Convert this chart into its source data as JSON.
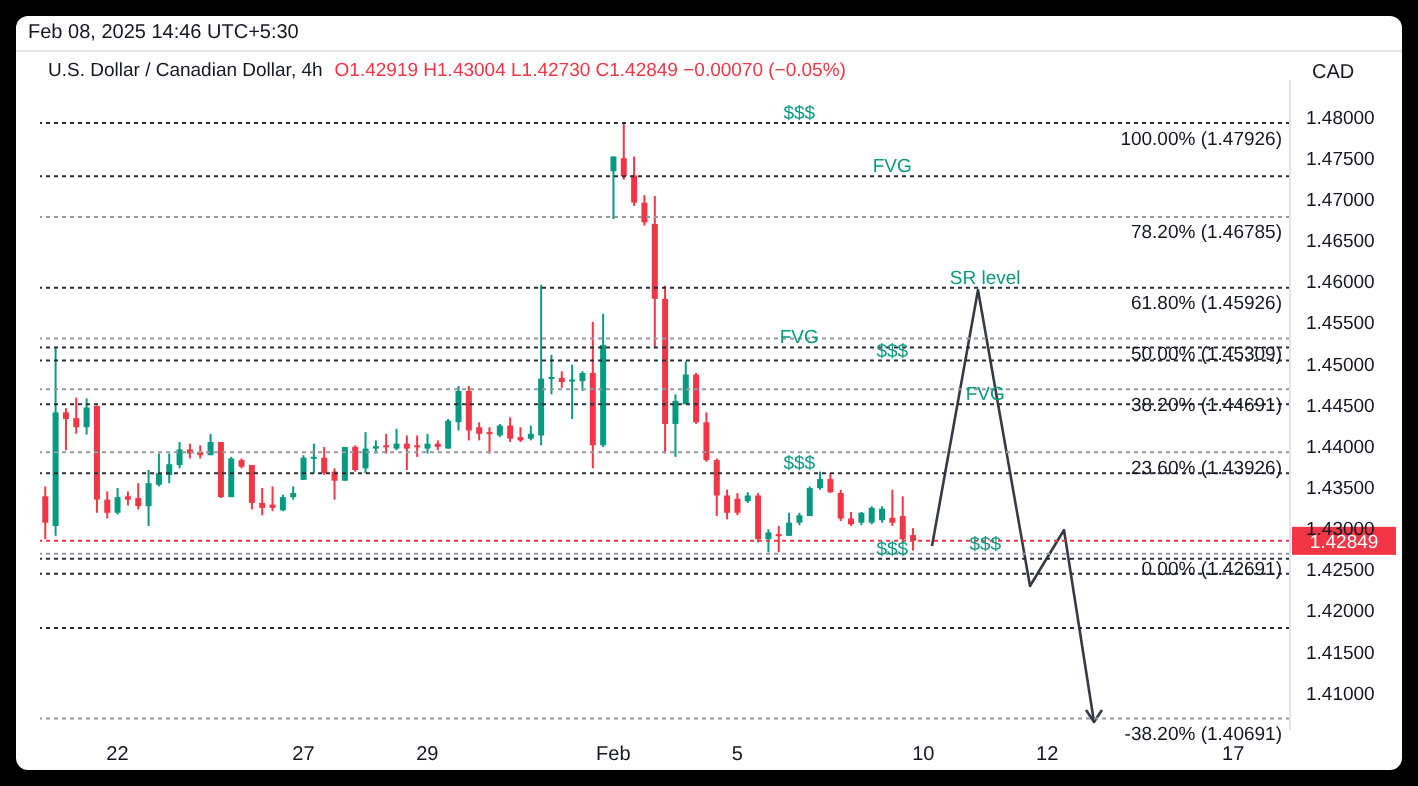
{
  "chart_data": {
    "type": "candlestick",
    "subtitle": "Feb 08, 2025 14:46 UTC+5:30",
    "title": "U.S. Dollar / Canadian Dollar, 4h",
    "ylabel": "CAD",
    "annotations": [
      "O1.42919 H1.43004 L1.42730 C1.42849 −0.00070 (−0.05%)",
      {
        "text": "$$$",
        "y": 1.47926
      },
      {
        "text": "FVG",
        "y": 1.4728
      },
      {
        "text": "SR level",
        "y": 1.45926
      },
      {
        "text": "FVG",
        "y": 1.452
      },
      {
        "text": "$$$",
        "y": 1.4504
      },
      {
        "text": "FVG",
        "y": 1.4451
      },
      {
        "text": "$$$",
        "y": 1.4367
      },
      {
        "text": "$$$",
        "y": 1.4263
      },
      {
        "text": "$$$",
        "y": 1.42691
      }
    ],
    "categories": [
      null,
      null,
      null,
      null,
      null,
      null,
      null,
      "22",
      null,
      null,
      null,
      null,
      null,
      null,
      null,
      null,
      null,
      null,
      null,
      null,
      null,
      null,
      null,
      null,
      null,
      "27",
      null,
      null,
      null,
      null,
      null,
      null,
      null,
      null,
      null,
      null,
      null,
      "29",
      null,
      null,
      null,
      null,
      null,
      null,
      null,
      null,
      null,
      null,
      null,
      null,
      null,
      null,
      null,
      null,
      null,
      "Feb",
      null,
      null,
      null,
      null,
      null,
      null,
      null,
      null,
      null,
      null,
      null,
      "5",
      null,
      null,
      null,
      null,
      null,
      null,
      null,
      null,
      null,
      null,
      null,
      null,
      null,
      null,
      null,
      null,
      null,
      "10",
      null,
      null,
      null,
      null,
      null,
      null,
      null,
      null,
      null,
      null,
      null,
      "12",
      null,
      null,
      null,
      null,
      null,
      null,
      null,
      null,
      null,
      null,
      null,
      null,
      null,
      null,
      null,
      null,
      null,
      "17",
      null,
      null,
      null,
      null,
      null
    ],
    "series": [
      {
        "ohlc": [
          [
            1.4339,
            1.4351,
            1.4287,
            1.4307
          ],
          [
            1.4303,
            1.4519,
            1.4291,
            1.4441
          ],
          [
            1.4441,
            1.4446,
            1.4395,
            1.4433
          ],
          [
            1.4434,
            1.4459,
            1.4415,
            1.4423
          ],
          [
            1.4423,
            1.4458,
            1.4414,
            1.4447
          ],
          [
            1.4449,
            1.4449,
            1.4319,
            1.4335
          ],
          [
            1.4335,
            1.4345,
            1.4312,
            1.4319
          ],
          [
            1.4319,
            1.4349,
            1.4317,
            1.4338
          ],
          [
            1.4339,
            1.4345,
            1.4328,
            1.4335
          ],
          [
            1.4337,
            1.4355,
            1.4323,
            1.4327
          ],
          [
            1.4327,
            1.4371,
            1.4303,
            1.4355
          ],
          [
            1.4353,
            1.4391,
            1.4351,
            1.4367
          ],
          [
            1.4365,
            1.4391,
            1.4355,
            1.4378
          ],
          [
            1.4377,
            1.4405,
            1.4373,
            1.4396
          ],
          [
            1.4396,
            1.4403,
            1.4385,
            1.4391
          ],
          [
            1.4393,
            1.4401,
            1.4385,
            1.4389
          ],
          [
            1.4389,
            1.4415,
            1.4389,
            1.4405
          ],
          [
            1.4405,
            1.4405,
            1.4337,
            1.4338
          ],
          [
            1.4338,
            1.4387,
            1.4338,
            1.4385
          ],
          [
            1.4383,
            1.4385,
            1.4373,
            1.4375
          ],
          [
            1.4377,
            1.4377,
            1.4323,
            1.4331
          ],
          [
            1.4331,
            1.4349,
            1.4316,
            1.4325
          ],
          [
            1.4329,
            1.4351,
            1.4321,
            1.4325
          ],
          [
            1.4322,
            1.4341,
            1.4321,
            1.4338
          ],
          [
            1.4338,
            1.4351,
            1.4335,
            1.4343
          ],
          [
            1.4359,
            1.4389,
            1.4359,
            1.4386
          ],
          [
            1.4386,
            1.4403,
            1.4367,
            1.4387
          ],
          [
            1.4386,
            1.4399,
            1.4365,
            1.4367
          ],
          [
            1.4369,
            1.4373,
            1.4335,
            1.4358
          ],
          [
            1.4358,
            1.4399,
            1.4358,
            1.4399
          ],
          [
            1.4399,
            1.4401,
            1.4369,
            1.4371
          ],
          [
            1.4373,
            1.4417,
            1.4367,
            1.4397
          ],
          [
            1.4397,
            1.4407,
            1.4391,
            1.44
          ],
          [
            1.4401,
            1.4415,
            1.4391,
            1.4399
          ],
          [
            1.4397,
            1.4421,
            1.4395,
            1.4403
          ],
          [
            1.4403,
            1.4413,
            1.4371,
            1.4397
          ],
          [
            1.4401,
            1.4413,
            1.4387,
            1.4399
          ],
          [
            1.4397,
            1.4415,
            1.4391,
            1.4403
          ],
          [
            1.4403,
            1.4407,
            1.4395,
            1.4399
          ],
          [
            1.4397,
            1.4433,
            1.4397,
            1.4431
          ],
          [
            1.4429,
            1.4473,
            1.4419,
            1.4467
          ],
          [
            1.4467,
            1.4473,
            1.4407,
            1.4419
          ],
          [
            1.4423,
            1.4429,
            1.4407,
            1.4415
          ],
          [
            1.4417,
            1.4423,
            1.4391,
            1.4415
          ],
          [
            1.4413,
            1.4427,
            1.4411,
            1.4425
          ],
          [
            1.4425,
            1.4435,
            1.4405,
            1.4409
          ],
          [
            1.4411,
            1.4423,
            1.4405,
            1.4407
          ],
          [
            1.4409,
            1.4425,
            1.4407,
            1.4415
          ],
          [
            1.4413,
            1.4596,
            1.4401,
            1.4482
          ],
          [
            1.4482,
            1.4511,
            1.4463,
            1.4484
          ],
          [
            1.4483,
            1.4491,
            1.4471,
            1.4478
          ],
          [
            1.4479,
            1.4499,
            1.4433,
            1.4481
          ],
          [
            1.4479,
            1.4491,
            1.4467,
            1.4489
          ],
          [
            1.4489,
            1.4551,
            1.4373,
            1.4401
          ],
          [
            1.4401,
            1.4561,
            1.4399,
            1.4523
          ],
          [
            1.4734,
            1.4752,
            1.4676,
            1.4752
          ],
          [
            1.475,
            1.4793,
            1.4724,
            1.4728
          ],
          [
            1.4729,
            1.4752,
            1.4692,
            1.4696
          ],
          [
            1.4696,
            1.4705,
            1.4668,
            1.4672
          ],
          [
            1.467,
            1.4704,
            1.4519,
            1.4579
          ],
          [
            1.4579,
            1.4595,
            1.4391,
            1.4427
          ],
          [
            1.4427,
            1.4463,
            1.4387,
            1.4455
          ],
          [
            1.4451,
            1.4503,
            1.4451,
            1.4487
          ],
          [
            1.4487,
            1.4489,
            1.4427,
            1.4429
          ],
          [
            1.4429,
            1.4441,
            1.4381,
            1.4383
          ],
          [
            1.4383,
            1.4385,
            1.4315,
            1.434
          ],
          [
            1.434,
            1.4347,
            1.4311,
            1.4319
          ],
          [
            1.4336,
            1.4343,
            1.4316,
            1.4319
          ],
          [
            1.4333,
            1.4344,
            1.4331,
            1.434
          ],
          [
            1.434,
            1.4343,
            1.4283,
            1.4287
          ],
          [
            1.4287,
            1.4299,
            1.4271,
            1.4295
          ],
          [
            1.4293,
            1.4303,
            1.4271,
            1.4292
          ],
          [
            1.4291,
            1.4319,
            1.4291,
            1.4307
          ],
          [
            1.4307,
            1.4319,
            1.4304,
            1.4316
          ],
          [
            1.4315,
            1.4351,
            1.4315,
            1.4349
          ],
          [
            1.4349,
            1.4369,
            1.4347,
            1.436
          ],
          [
            1.436,
            1.4367,
            1.4343,
            1.4344
          ],
          [
            1.4343,
            1.4347,
            1.4309,
            1.4312
          ],
          [
            1.4312,
            1.432,
            1.4303,
            1.4305
          ],
          [
            1.4307,
            1.432,
            1.4304,
            1.4319
          ],
          [
            1.4307,
            1.4327,
            1.4305,
            1.4325
          ],
          [
            1.431,
            1.4327,
            1.4307,
            1.4324
          ],
          [
            1.4313,
            1.4347,
            1.4303,
            1.4307
          ],
          [
            1.4315,
            1.4339,
            1.4283,
            1.4287
          ],
          [
            1.42919,
            1.43004,
            1.4273,
            1.42849
          ],
          null,
          null,
          null,
          null,
          null,
          null,
          null,
          null,
          null,
          null,
          null,
          null,
          null,
          null,
          null,
          null,
          null,
          null,
          null,
          null,
          null,
          null,
          null,
          null,
          null,
          null,
          null,
          null,
          null,
          null,
          null,
          null,
          null,
          null,
          null,
          null
        ],
        "colors": [
          "#f23645",
          "#089981",
          "#f23645",
          "#f23645",
          "#089981",
          "#f23645",
          "#f23645",
          "#089981",
          "#f23645",
          "#f23645",
          "#089981",
          "#089981",
          "#089981",
          "#089981",
          "#f23645",
          "#f23645",
          "#089981",
          "#f23645",
          "#089981",
          "#f23645",
          "#f23645",
          "#f23645",
          "#f23645",
          "#089981",
          "#089981",
          "#089981",
          "#089981",
          "#f23645",
          "#f23645",
          "#089981",
          "#f23645",
          "#089981",
          "#089981",
          "#f23645",
          "#089981",
          "#f23645",
          "#f23645",
          "#089981",
          "#f23645",
          "#089981",
          "#089981",
          "#f23645",
          "#f23645",
          "#f23645",
          "#089981",
          "#f23645",
          "#f23645",
          "#089981",
          "#089981",
          "#089981",
          "#f23645",
          "#089981",
          "#089981",
          "#f23645",
          "#089981",
          "#089981",
          "#f23645",
          "#f23645",
          "#f23645",
          "#f23645",
          "#f23645",
          "#089981",
          "#089981",
          "#f23645",
          "#f23645",
          "#f23645",
          "#f23645",
          "#f23645",
          "#089981",
          "#f23645",
          "#089981",
          "#f23645",
          "#089981",
          "#089981",
          "#089981",
          "#089981",
          "#f23645",
          "#f23645",
          "#f23645",
          "#089981",
          "#089981",
          "#089981",
          "#f23645",
          "#f23645",
          "#f23645",
          null,
          null,
          null,
          null,
          null,
          null,
          null,
          null,
          null,
          null,
          null,
          null,
          null,
          null,
          null,
          null,
          null,
          null,
          null,
          null,
          null,
          null,
          null,
          null,
          null,
          null,
          null,
          null,
          null,
          null,
          null,
          null,
          null,
          null,
          null,
          null
        ]
      }
    ],
    "ylim": [
      1.4055,
      1.4845
    ],
    "yticks": [
      {
        "value": 1.41,
        "label": "1.41000"
      },
      {
        "value": 1.415,
        "label": "1.41500"
      },
      {
        "value": 1.42,
        "label": "1.42000"
      },
      {
        "value": 1.425,
        "label": "1.42500"
      },
      {
        "value": 1.43,
        "label": "1.43000"
      },
      {
        "value": 1.435,
        "label": "1.43500"
      },
      {
        "value": 1.44,
        "label": "1.44000"
      },
      {
        "value": 1.445,
        "label": "1.44500"
      },
      {
        "value": 1.45,
        "label": "1.45000"
      },
      {
        "value": 1.455,
        "label": "1.45500"
      },
      {
        "value": 1.46,
        "label": "1.46000"
      },
      {
        "value": 1.465,
        "label": "1.46500"
      },
      {
        "value": 1.47,
        "label": "1.47000"
      },
      {
        "value": 1.475,
        "label": "1.47500"
      },
      {
        "value": 1.48,
        "label": "1.48000"
      }
    ],
    "ref_lines": [
      {
        "axis": "y",
        "value": 1.47926,
        "label": "100.00% (1.47926)",
        "color": "#2a2e39",
        "line_style": "dotted"
      },
      {
        "axis": "y",
        "value": 1.4728,
        "color": "#2a2e39",
        "line_style": "dotted"
      },
      {
        "axis": "y",
        "value": 1.46785,
        "label": "78.20% (1.46785)",
        "color": "#9598a1",
        "line_style": "dotted"
      },
      {
        "axis": "y",
        "value": 1.45926,
        "label": "61.80% (1.45926)",
        "color": "#2a2e39",
        "line_style": "dotted"
      },
      {
        "axis": "y",
        "value": 1.45309,
        "label": "50.00% (1.45309)",
        "color": "#9598a1",
        "line_style": "dotted"
      },
      {
        "axis": "y",
        "value": 1.452,
        "color": "#2a2e39",
        "line_style": "dotted"
      },
      {
        "axis": "y",
        "value": 1.4504,
        "color": "#2a2e39",
        "line_style": "dotted"
      },
      {
        "axis": "y",
        "value": 1.44691,
        "label": "38.20% (1.44691)",
        "color": "#9598a1",
        "line_style": "dotted"
      },
      {
        "axis": "y",
        "value": 1.4451,
        "color": "#2a2e39",
        "line_style": "dotted"
      },
      {
        "axis": "y",
        "value": 1.43926,
        "label": "23.60% (1.43926)",
        "color": "#9598a1",
        "line_style": "dotted"
      },
      {
        "axis": "y",
        "value": 1.4367,
        "color": "#2a2e39",
        "line_style": "dotted"
      },
      {
        "axis": "y",
        "value": 1.42691,
        "label": "0.00% (1.42691)",
        "color": "#9598a1",
        "line_style": "dotted"
      },
      {
        "axis": "y",
        "value": 1.42849,
        "label": "1.42849",
        "color": "#f23645",
        "line_style": "dotted"
      },
      {
        "axis": "y",
        "value": 1.4263,
        "color": "#2a2e39",
        "line_style": "dotted"
      },
      {
        "axis": "y",
        "value": 1.4245,
        "color": "#2a2e39",
        "line_style": "dotted"
      },
      {
        "axis": "y",
        "value": 1.4179,
        "color": "#2a2e39",
        "line_style": "dotted"
      },
      {
        "axis": "y",
        "value": 1.40691,
        "label": "-38.20% (1.40691)",
        "color": "#9598a1",
        "line_style": "dotted"
      }
    ]
  }
}
